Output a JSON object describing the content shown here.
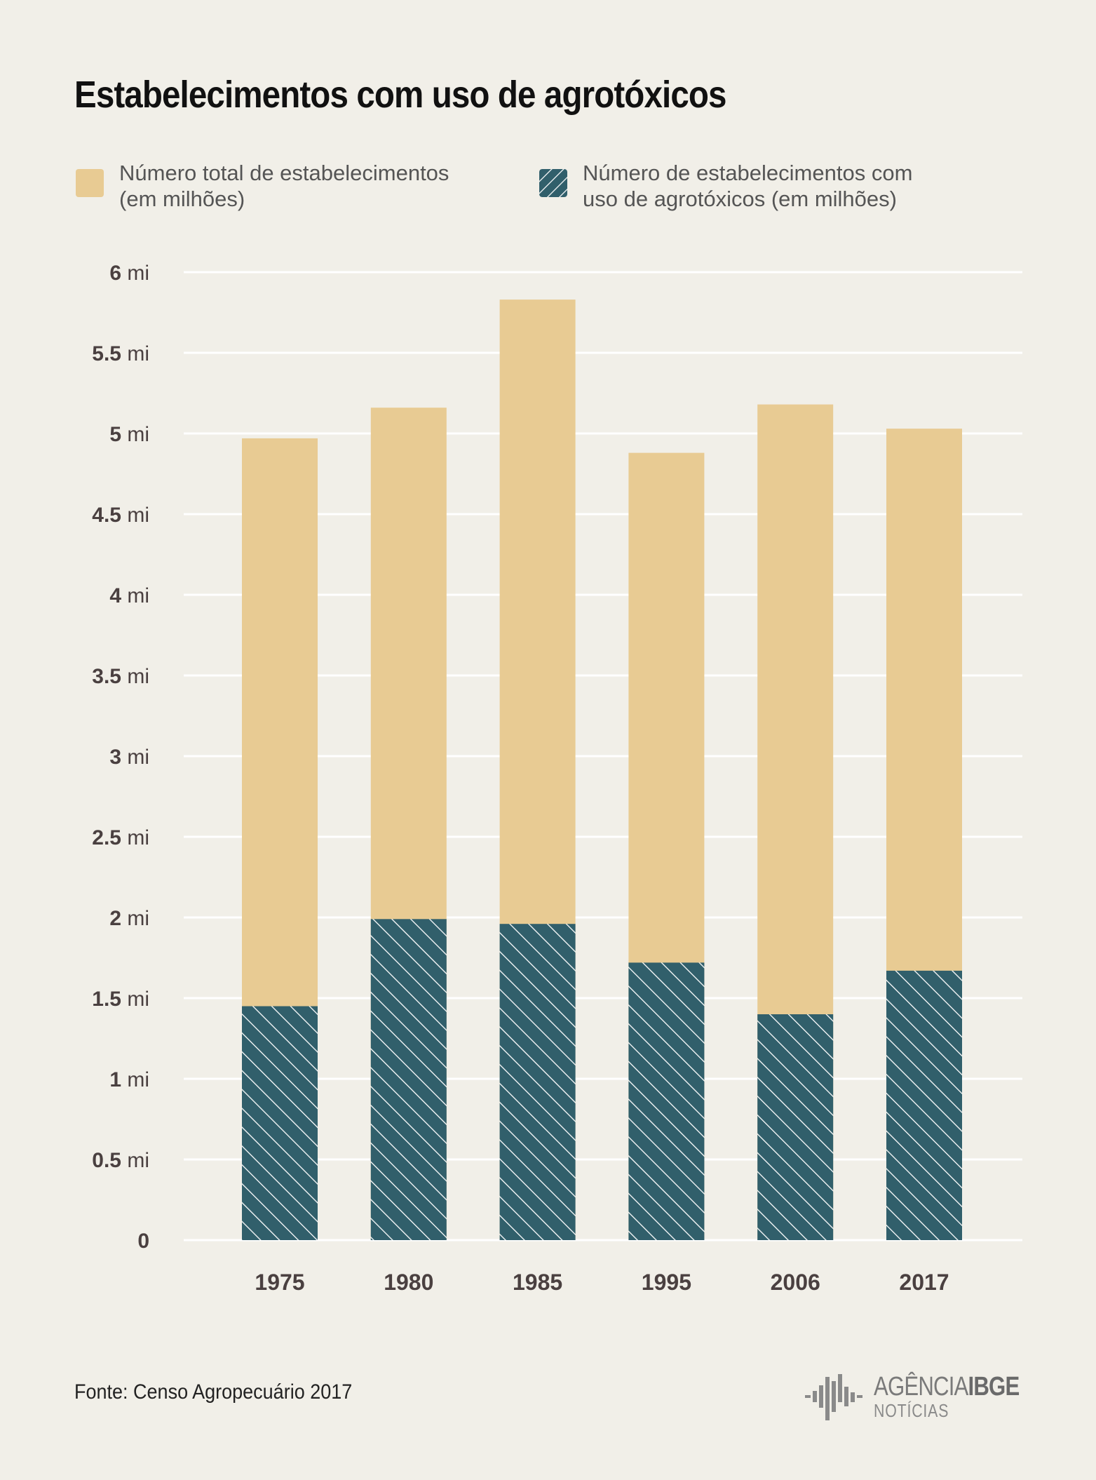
{
  "title": "Estabelecimentos com uso de agrotóxicos",
  "legend": {
    "total_label": "Número total de estabelecimentos (em milhões)",
    "agro_label": "Número de estabelecimentos com uso de agrotóxicos (em milhões)"
  },
  "colors": {
    "background": "#f1efe8",
    "total": "#e8cb93",
    "agro": "#315f6b",
    "grid": "#ffffff",
    "axis_text": "#4a4040"
  },
  "chart_data": {
    "type": "bar",
    "stacked": "overlay",
    "categories": [
      "1975",
      "1980",
      "1985",
      "1995",
      "2006",
      "2017"
    ],
    "series": [
      {
        "name": "Número total de estabelecimentos (em milhões)",
        "values": [
          4.97,
          5.16,
          5.83,
          4.88,
          5.18,
          5.03
        ]
      },
      {
        "name": "Número de estabelecimentos com uso de agrotóxicos (em milhões)",
        "values": [
          1.45,
          1.99,
          1.96,
          1.72,
          1.4,
          1.67
        ]
      }
    ],
    "ylim": [
      0,
      6
    ],
    "yticks": [
      0,
      0.5,
      1,
      1.5,
      2,
      2.5,
      3,
      3.5,
      4,
      4.5,
      5,
      5.5,
      6
    ],
    "ytick_labels": [
      "0",
      "0.5 mi",
      "1 mi",
      "1.5 mi",
      "2 mi",
      "2.5 mi",
      "3 mi",
      "3.5 mi",
      "4 mi",
      "4.5 mi",
      "5 mi",
      "5.5 mi",
      "6 mi"
    ],
    "grid": true,
    "legend_position": "top"
  },
  "source": "Fonte: Censo Agropecuário 2017",
  "logo": {
    "line1a": "AGÊNCIA",
    "line1b": "IBGE",
    "line2": "NOTÍCIAS"
  }
}
